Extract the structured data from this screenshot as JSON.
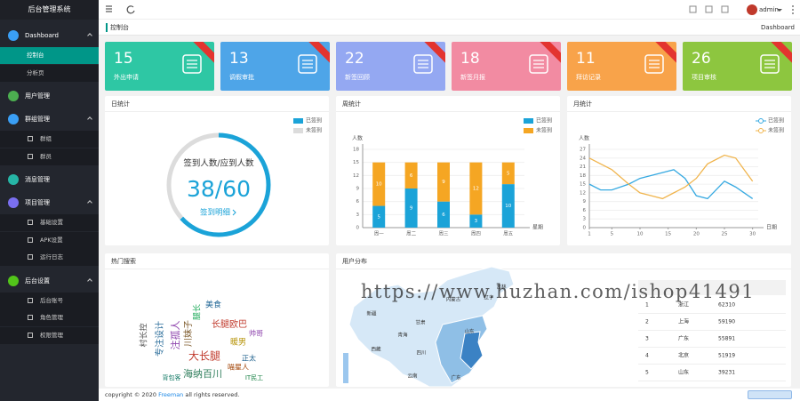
{
  "sidebar": {
    "title": "后台管理系统",
    "menu": [
      {
        "label": "Dashboard",
        "children": [
          "控制台",
          "分析页"
        ]
      },
      {
        "label": "用户管理"
      },
      {
        "label": "群组管理",
        "children": [
          "群组",
          "群员"
        ]
      },
      {
        "label": "消息管理"
      },
      {
        "label": "项目管理",
        "children": [
          "基础设置",
          "APK设置",
          "运行日志"
        ]
      },
      {
        "label": "后台设置",
        "children": [
          "后台账号",
          "角色管理",
          "权限管理"
        ]
      }
    ]
  },
  "header": {
    "user": "admin"
  },
  "breadcrumb": {
    "current": "控制台",
    "right": "Dashboard"
  },
  "cards": [
    {
      "value": 15,
      "label": "外出申请",
      "color": "#2ec7a4"
    },
    {
      "value": 13,
      "label": "调假审批",
      "color": "#4ea5e8"
    },
    {
      "value": 22,
      "label": "新签回顾",
      "color": "#94a8f2"
    },
    {
      "value": 18,
      "label": "新签月报",
      "color": "#f28ba2"
    },
    {
      "value": 11,
      "label": "拜访记录",
      "color": "#f8a34a"
    },
    {
      "value": 26,
      "label": "项目审核",
      "color": "#8dc63f"
    }
  ],
  "day_chart": {
    "type": "donut",
    "title": "日统计",
    "series": [
      {
        "name": "已签到",
        "color": "#1ba3d8",
        "value": 38
      },
      {
        "name": "未签到",
        "color": "#dcdcdc",
        "value": 22
      }
    ],
    "caption": "签到人数/应到人数",
    "value_label": "38/60",
    "link": "签到明细"
  },
  "week_chart": {
    "type": "bar",
    "stacked": true,
    "title": "周统计",
    "y_label": "人数",
    "x_label": "星期",
    "categories": [
      "周一",
      "周二",
      "周三",
      "周四",
      "周五"
    ],
    "series": [
      {
        "name": "已签到",
        "color": "#1ba3d8",
        "values": [
          5,
          9,
          6,
          3,
          10
        ]
      },
      {
        "name": "未签到",
        "color": "#f5a623",
        "values": [
          10,
          6,
          9,
          12,
          5
        ]
      }
    ],
    "ylim": [
      0,
      18
    ],
    "yticks": [
      0,
      3,
      6,
      9,
      12,
      15,
      18
    ]
  },
  "month_chart": {
    "type": "line",
    "title": "月统计",
    "y_label": "人数",
    "x_label": "日期",
    "x": [
      1,
      3,
      5,
      8,
      10,
      12,
      14,
      16,
      18,
      20,
      22,
      25,
      27,
      30
    ],
    "series": [
      {
        "name": "已签到",
        "color": "#36a9e1",
        "values": [
          15,
          13,
          13,
          15,
          17,
          18,
          19,
          20,
          17,
          11,
          10,
          16,
          14,
          10
        ]
      },
      {
        "name": "未签到",
        "color": "#f0b44c",
        "values": [
          24,
          22,
          20,
          15,
          12,
          11,
          10,
          12,
          14,
          17,
          22,
          25,
          24,
          16
        ]
      }
    ],
    "xlim": [
      1,
      31
    ],
    "xticks": [
      1,
      5,
      10,
      15,
      20,
      25,
      30
    ],
    "ylim": [
      0,
      27
    ],
    "yticks": [
      0,
      3,
      6,
      9,
      12,
      15,
      18,
      21,
      24,
      27
    ]
  },
  "hot_search": {
    "title": "热门搜索",
    "words": [
      "大长腿",
      "海纳百川",
      "注孤人",
      "专注设计",
      "川妹子",
      "长腿欧巴",
      "美食",
      "暖男",
      "村长控",
      "腿长",
      "帅哥",
      "正太",
      "喵星人",
      "IT民工",
      "背包客"
    ]
  },
  "user_distribution": {
    "title": "用户分布",
    "regions": [
      "新疆",
      "西藏",
      "青海",
      "甘肃",
      "内蒙古",
      "四川",
      "云南",
      "广东",
      "山东",
      "辽宁",
      "吉林"
    ],
    "table": {
      "rows": [
        [
          1,
          "浙江",
          62310
        ],
        [
          2,
          "上海",
          59190
        ],
        [
          3,
          "广东",
          55891
        ],
        [
          4,
          "北京",
          51919
        ],
        [
          5,
          "山东",
          39231
        ]
      ]
    }
  },
  "watermark": "https://www.huzhan.com/ishop41491",
  "footer": {
    "text": "copyright © 2020",
    "link": "Freeman",
    "suffix": "all rights reserved."
  }
}
